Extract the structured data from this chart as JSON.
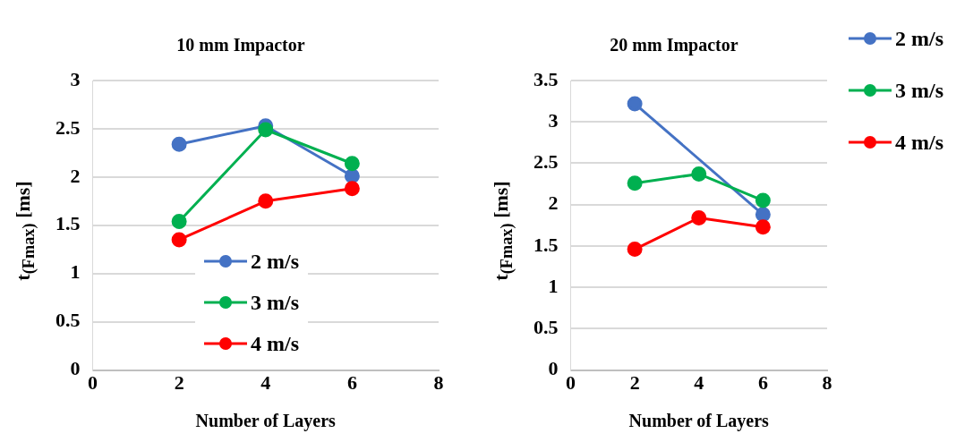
{
  "chart_data": [
    {
      "type": "line",
      "title": "10 mm Impactor",
      "xlabel": "Number of Layers",
      "ylabel": "t$_{(Fmax)}$ [ms]",
      "xlim": [
        0,
        8
      ],
      "xticks": [
        0,
        2,
        4,
        6,
        8
      ],
      "ylim": [
        0,
        3
      ],
      "yticks": [
        0,
        0.5,
        1,
        1.5,
        2,
        2.5,
        3
      ],
      "grid": "y",
      "legend": "bottom",
      "marker": "circle",
      "line_style": "solid",
      "series": [
        {
          "name": "2 m/s",
          "color": "#4472c4",
          "x": [
            2,
            4,
            6
          ],
          "values": [
            2.34,
            2.53,
            2.01
          ]
        },
        {
          "name": "3 m/s",
          "color": "#00b050",
          "x": [
            2,
            4,
            6
          ],
          "values": [
            1.54,
            2.49,
            2.14
          ]
        },
        {
          "name": "4 m/s",
          "color": "#ff0000",
          "x": [
            2,
            4,
            6
          ],
          "values": [
            1.35,
            1.75,
            1.88
          ]
        }
      ]
    },
    {
      "type": "line",
      "title": "20 mm Impactor",
      "xlabel": "Number of Layers",
      "ylabel": "t$_{(Fmax)}$ [ms]",
      "xlim": [
        0,
        8
      ],
      "xticks": [
        0,
        2,
        4,
        6,
        8
      ],
      "ylim": [
        0,
        3.5
      ],
      "yticks": [
        0,
        0.5,
        1,
        1.5,
        2,
        2.5,
        3,
        3.5
      ],
      "grid": "y",
      "legend": "top right",
      "marker": "circle",
      "line_style": "solid",
      "series": [
        {
          "name": "2 m/s",
          "color": "#4472c4",
          "x": [
            2,
            6
          ],
          "values": [
            3.22,
            1.88
          ]
        },
        {
          "name": "3 m/s",
          "color": "#00b050",
          "x": [
            2,
            4,
            6
          ],
          "values": [
            2.26,
            2.37,
            2.05
          ]
        },
        {
          "name": "4 m/s",
          "color": "#ff0000",
          "x": [
            2,
            4,
            6
          ],
          "values": [
            1.46,
            1.84,
            1.73
          ]
        }
      ]
    }
  ]
}
